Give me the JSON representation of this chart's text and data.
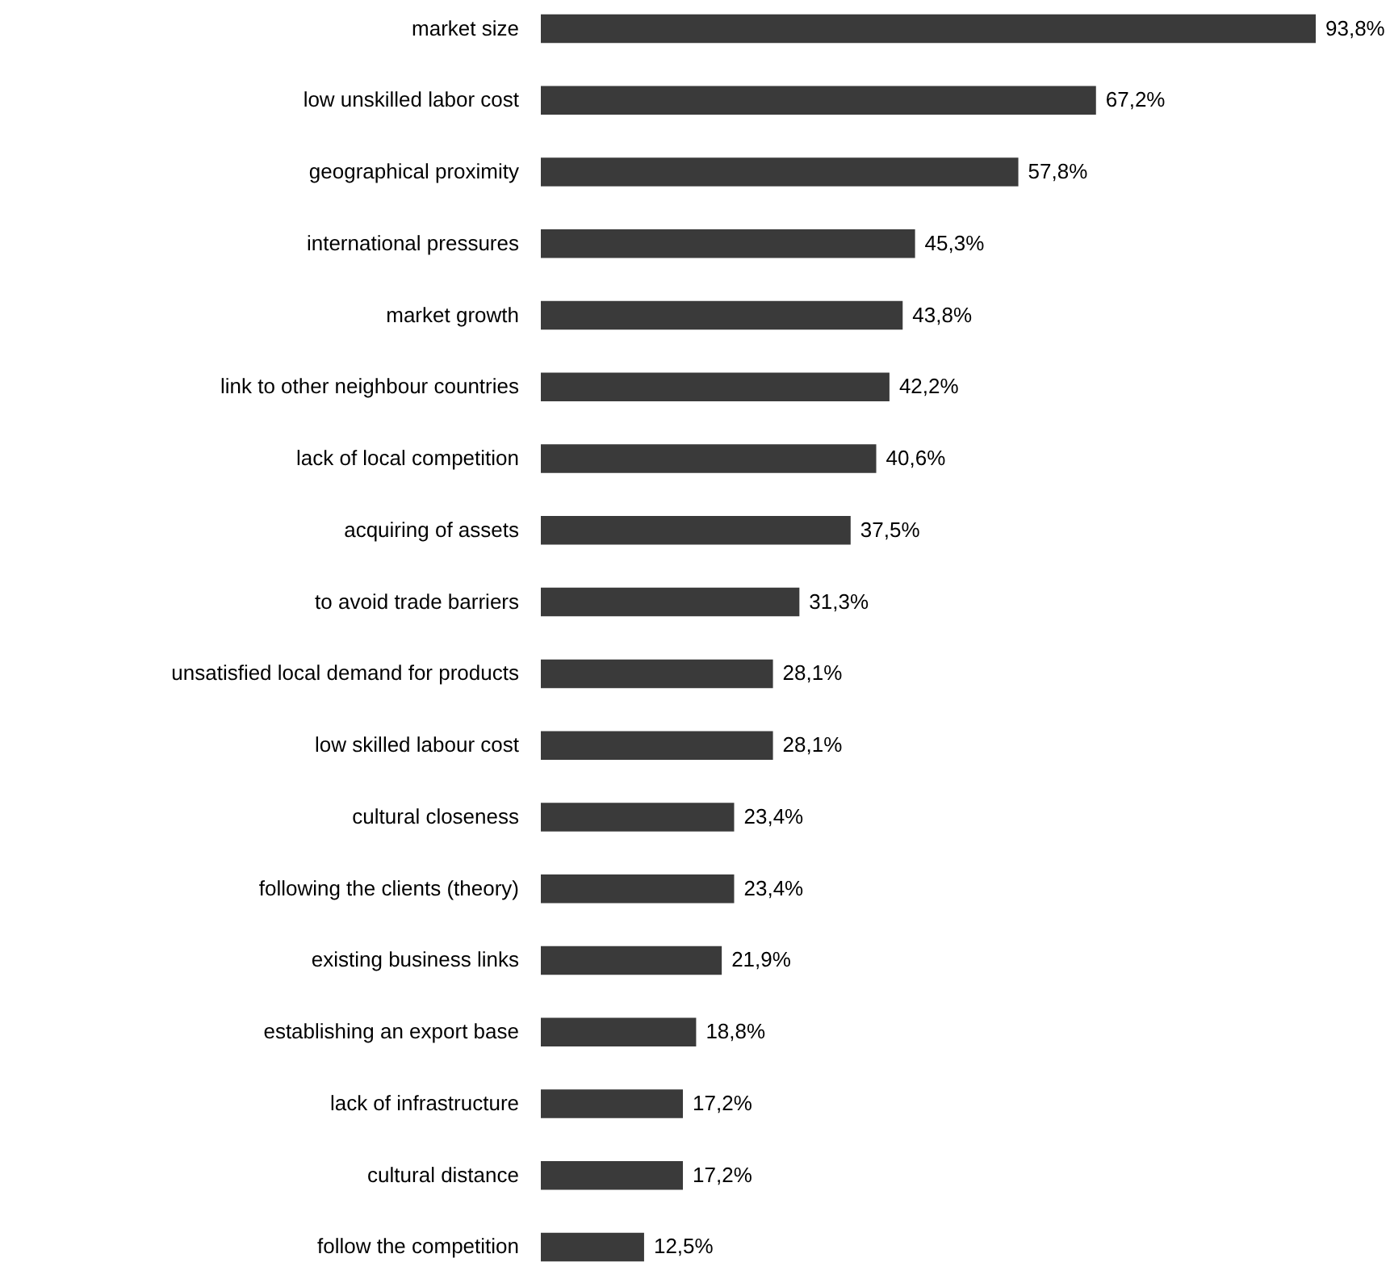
{
  "chart_data": {
    "type": "bar",
    "orientation": "horizontal",
    "color": "#3a3a3a",
    "categories": [
      "market size",
      "low unskilled labor cost",
      "geographical proximity",
      "international pressures",
      "market growth",
      "link to other neighbour countries",
      "lack of local competition",
      "acquiring of assets",
      "to avoid trade barriers",
      "unsatisfied local demand for products",
      "low skilled labour cost",
      "cultural closeness",
      "following the clients (theory)",
      "existing business links",
      "establishing an export base",
      "lack of infrastructure",
      "cultural distance",
      "follow the competition"
    ],
    "values": [
      93.8,
      67.2,
      57.8,
      45.3,
      43.8,
      42.2,
      40.6,
      37.5,
      31.3,
      28.1,
      28.1,
      23.4,
      23.4,
      21.9,
      18.8,
      17.2,
      17.2,
      12.5
    ],
    "value_labels": [
      "93,8%",
      "67,2%",
      "57,8%",
      "45,3%",
      "43,8%",
      "42,2%",
      "40,6%",
      "37,5%",
      "31,3%",
      "28,1%",
      "28,1%",
      "23,4%",
      "23,4%",
      "21,9%",
      "18,8%",
      "17,2%",
      "17,2%",
      "12,5%"
    ]
  }
}
